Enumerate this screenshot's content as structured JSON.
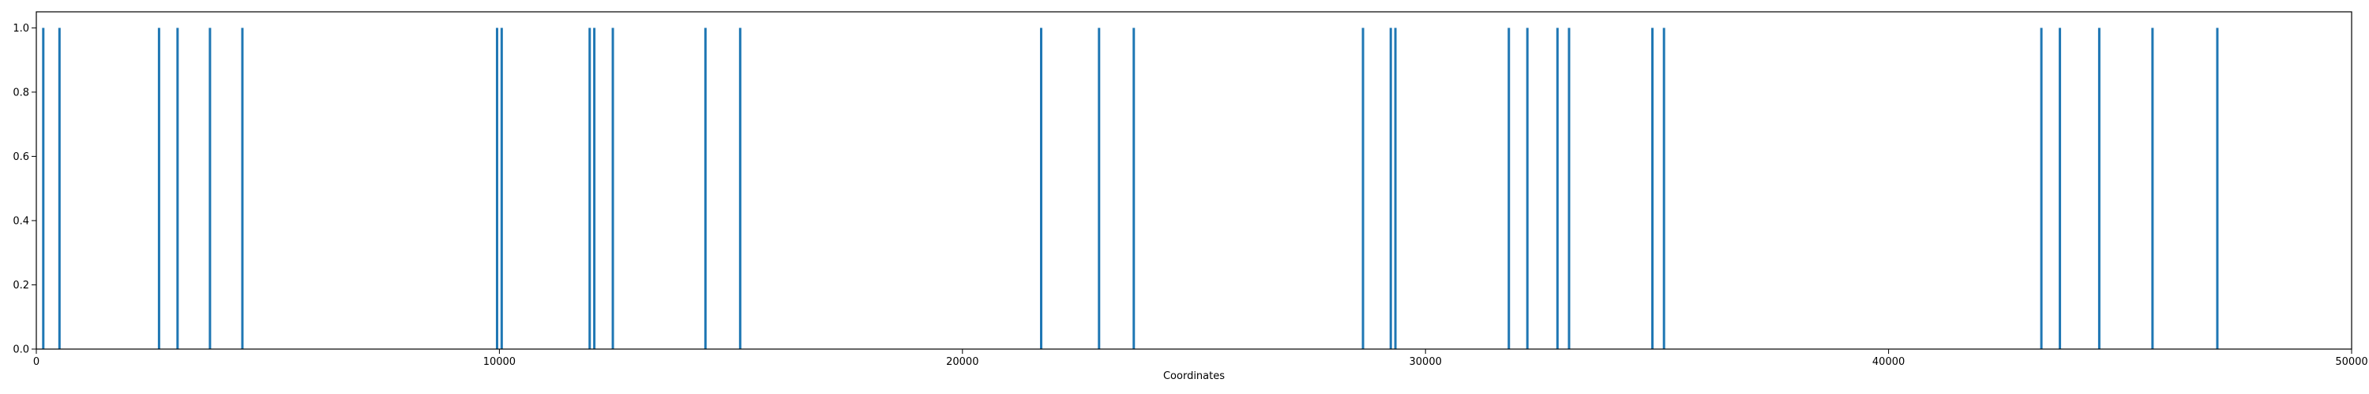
{
  "chart_data": {
    "type": "bar",
    "xlabel": "Coordinates",
    "ylabel": "",
    "xlim": [
      0,
      50000
    ],
    "ylim": [
      0,
      1.05
    ],
    "xticks": [
      0,
      10000,
      20000,
      30000,
      40000,
      50000
    ],
    "yticks": [
      0.0,
      0.2,
      0.4,
      0.6,
      0.8,
      1.0
    ],
    "xtick_labels": [
      "0",
      "10000",
      "20000",
      "30000",
      "40000",
      "50000"
    ],
    "ytick_labels": [
      "0.0",
      "0.2",
      "0.4",
      "0.6",
      "0.8",
      "1.0"
    ],
    "grid": false,
    "bar_color": "#1f77b4",
    "x": [
      150,
      500,
      2650,
      3050,
      3750,
      4450,
      9950,
      10050,
      11950,
      12050,
      12450,
      14450,
      15200,
      21700,
      22950,
      23700,
      28650,
      29250,
      29350,
      31800,
      32200,
      32850,
      33100,
      34900,
      35150,
      43300,
      43700,
      44550,
      45700,
      47100
    ],
    "values": [
      1,
      1,
      1,
      1,
      1,
      1,
      1,
      1,
      1,
      1,
      1,
      1,
      1,
      1,
      1,
      1,
      1,
      1,
      1,
      1,
      1,
      1,
      1,
      1,
      1,
      1,
      1,
      1,
      1,
      1
    ]
  }
}
